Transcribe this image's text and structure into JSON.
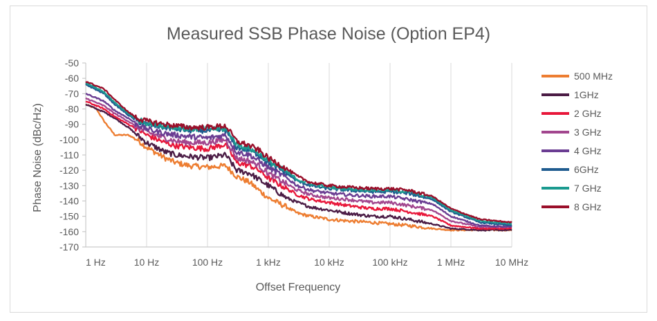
{
  "chart_data": {
    "type": "line",
    "title": "Measured SSB Phase Noise (Option EP4)",
    "xlabel": "Offset Frequency",
    "ylabel": "Phase Noise (dBc/Hz)",
    "x_scale": "log",
    "xlim": [
      1,
      10000000
    ],
    "ylim": [
      -170,
      -50
    ],
    "x_ticks": [
      1,
      10,
      100,
      1000,
      10000,
      100000,
      1000000,
      10000000
    ],
    "x_tick_labels": [
      "1 Hz",
      "10 Hz",
      "100 Hz",
      "1 kHz",
      "10 kHz",
      "100 kHz",
      "1 MHz",
      "10 MHz"
    ],
    "y_ticks": [
      -50,
      -60,
      -70,
      -80,
      -90,
      -100,
      -110,
      -120,
      -130,
      -140,
      -150,
      -160,
      -170
    ],
    "y_tick_labels": [
      "-50",
      "-60",
      "-70",
      "-80",
      "-90",
      "-100",
      "-110",
      "-120",
      "-130",
      "-140",
      "-150",
      "-160",
      "-170"
    ],
    "grid": "vertical",
    "legend_position": "right",
    "series": [
      {
        "name": "500 MHz",
        "color": "#ED7D31",
        "points": [
          [
            1,
            -77
          ],
          [
            1.5,
            -80
          ],
          [
            2,
            -88
          ],
          [
            3,
            -97
          ],
          [
            5,
            -97
          ],
          [
            7,
            -100
          ],
          [
            10,
            -105
          ],
          [
            20,
            -112
          ],
          [
            30,
            -115
          ],
          [
            50,
            -117
          ],
          [
            100,
            -118
          ],
          [
            200,
            -117
          ],
          [
            300,
            -124
          ],
          [
            500,
            -128
          ],
          [
            700,
            -133
          ],
          [
            1000,
            -138
          ],
          [
            2000,
            -144
          ],
          [
            3000,
            -148
          ],
          [
            5000,
            -150
          ],
          [
            10000,
            -152
          ],
          [
            20000,
            -153
          ],
          [
            50000,
            -154
          ],
          [
            100000,
            -155
          ],
          [
            200000,
            -156
          ],
          [
            500000,
            -158
          ],
          [
            1000000,
            -159
          ],
          [
            3000000,
            -159
          ],
          [
            10000000,
            -159
          ]
        ]
      },
      {
        "name": "1GHz",
        "color": "#4B1C45",
        "points": [
          [
            1,
            -77
          ],
          [
            2,
            -82
          ],
          [
            3,
            -86
          ],
          [
            5,
            -92
          ],
          [
            7,
            -97
          ],
          [
            10,
            -102
          ],
          [
            20,
            -108
          ],
          [
            30,
            -110
          ],
          [
            50,
            -111
          ],
          [
            100,
            -112
          ],
          [
            200,
            -110
          ],
          [
            300,
            -120
          ],
          [
            500,
            -122
          ],
          [
            700,
            -126
          ],
          [
            1000,
            -130
          ],
          [
            2000,
            -138
          ],
          [
            3000,
            -141
          ],
          [
            5000,
            -144
          ],
          [
            10000,
            -146
          ],
          [
            20000,
            -148
          ],
          [
            50000,
            -150
          ],
          [
            100000,
            -150
          ],
          [
            200000,
            -152
          ],
          [
            500000,
            -155
          ],
          [
            1000000,
            -158
          ],
          [
            3000000,
            -159
          ],
          [
            10000000,
            -159
          ]
        ]
      },
      {
        "name": "2 GHz",
        "color": "#E8173A",
        "points": [
          [
            1,
            -75
          ],
          [
            2,
            -80
          ],
          [
            3,
            -85
          ],
          [
            5,
            -90
          ],
          [
            7,
            -93
          ],
          [
            10,
            -97
          ],
          [
            20,
            -102
          ],
          [
            30,
            -104
          ],
          [
            50,
            -105
          ],
          [
            100,
            -106
          ],
          [
            200,
            -103
          ],
          [
            300,
            -115
          ],
          [
            500,
            -117
          ],
          [
            700,
            -120
          ],
          [
            1000,
            -125
          ],
          [
            2000,
            -132
          ],
          [
            3000,
            -136
          ],
          [
            5000,
            -139
          ],
          [
            10000,
            -141
          ],
          [
            20000,
            -143
          ],
          [
            50000,
            -145
          ],
          [
            100000,
            -145
          ],
          [
            200000,
            -147
          ],
          [
            500000,
            -150
          ],
          [
            1000000,
            -156
          ],
          [
            3000000,
            -158
          ],
          [
            10000000,
            -158
          ]
        ]
      },
      {
        "name": "3 GHz",
        "color": "#A2468E",
        "points": [
          [
            1,
            -73
          ],
          [
            2,
            -78
          ],
          [
            3,
            -83
          ],
          [
            5,
            -88
          ],
          [
            7,
            -92
          ],
          [
            10,
            -95
          ],
          [
            20,
            -99
          ],
          [
            30,
            -101
          ],
          [
            50,
            -102
          ],
          [
            100,
            -102
          ],
          [
            200,
            -100
          ],
          [
            300,
            -112
          ],
          [
            500,
            -114
          ],
          [
            700,
            -117
          ],
          [
            1000,
            -122
          ],
          [
            2000,
            -129
          ],
          [
            3000,
            -133
          ],
          [
            5000,
            -136
          ],
          [
            10000,
            -138
          ],
          [
            20000,
            -139
          ],
          [
            50000,
            -141
          ],
          [
            100000,
            -141
          ],
          [
            200000,
            -143
          ],
          [
            500000,
            -146
          ],
          [
            1000000,
            -153
          ],
          [
            3000000,
            -157
          ],
          [
            10000000,
            -157
          ]
        ]
      },
      {
        "name": "4 GHz",
        "color": "#6A3C92",
        "points": [
          [
            1,
            -70
          ],
          [
            2,
            -75
          ],
          [
            3,
            -81
          ],
          [
            5,
            -86
          ],
          [
            7,
            -90
          ],
          [
            10,
            -93
          ],
          [
            20,
            -96
          ],
          [
            30,
            -97
          ],
          [
            50,
            -98
          ],
          [
            100,
            -99
          ],
          [
            200,
            -97
          ],
          [
            300,
            -108
          ],
          [
            500,
            -110
          ],
          [
            700,
            -114
          ],
          [
            1000,
            -118
          ],
          [
            2000,
            -125
          ],
          [
            3000,
            -130
          ],
          [
            5000,
            -133
          ],
          [
            10000,
            -135
          ],
          [
            20000,
            -136
          ],
          [
            50000,
            -137
          ],
          [
            100000,
            -137
          ],
          [
            200000,
            -139
          ],
          [
            500000,
            -142
          ],
          [
            1000000,
            -150
          ],
          [
            3000000,
            -156
          ],
          [
            10000000,
            -157
          ]
        ]
      },
      {
        "name": "6GHz",
        "color": "#1F5B8F",
        "points": [
          [
            1,
            -64
          ],
          [
            2,
            -70
          ],
          [
            3,
            -77
          ],
          [
            5,
            -84
          ],
          [
            7,
            -88
          ],
          [
            10,
            -90
          ],
          [
            20,
            -92
          ],
          [
            30,
            -93
          ],
          [
            50,
            -94
          ],
          [
            100,
            -94
          ],
          [
            200,
            -94
          ],
          [
            300,
            -105
          ],
          [
            500,
            -107
          ],
          [
            700,
            -110
          ],
          [
            1000,
            -115
          ],
          [
            2000,
            -122
          ],
          [
            3000,
            -127
          ],
          [
            5000,
            -130
          ],
          [
            10000,
            -132
          ],
          [
            20000,
            -133
          ],
          [
            50000,
            -134
          ],
          [
            100000,
            -134
          ],
          [
            200000,
            -135
          ],
          [
            500000,
            -139
          ],
          [
            1000000,
            -147
          ],
          [
            3000000,
            -154
          ],
          [
            10000000,
            -156
          ]
        ]
      },
      {
        "name": "7 GHz",
        "color": "#1A9A8F",
        "points": [
          [
            1,
            -63
          ],
          [
            2,
            -69
          ],
          [
            3,
            -76
          ],
          [
            5,
            -83
          ],
          [
            7,
            -87
          ],
          [
            10,
            -89
          ],
          [
            20,
            -91
          ],
          [
            30,
            -92
          ],
          [
            50,
            -93
          ],
          [
            100,
            -93
          ],
          [
            200,
            -93
          ],
          [
            300,
            -103
          ],
          [
            500,
            -106
          ],
          [
            700,
            -109
          ],
          [
            1000,
            -114
          ],
          [
            2000,
            -121
          ],
          [
            3000,
            -126
          ],
          [
            5000,
            -129
          ],
          [
            10000,
            -131
          ],
          [
            20000,
            -132
          ],
          [
            50000,
            -133
          ],
          [
            100000,
            -133
          ],
          [
            200000,
            -134
          ],
          [
            500000,
            -138
          ],
          [
            1000000,
            -146
          ],
          [
            3000000,
            -153
          ],
          [
            10000000,
            -155
          ]
        ]
      },
      {
        "name": "8 GHz",
        "color": "#9A0F2A",
        "points": [
          [
            1,
            -62
          ],
          [
            2,
            -67
          ],
          [
            3,
            -74
          ],
          [
            5,
            -82
          ],
          [
            7,
            -86
          ],
          [
            10,
            -88
          ],
          [
            20,
            -90
          ],
          [
            30,
            -91
          ],
          [
            50,
            -92
          ],
          [
            100,
            -92
          ],
          [
            200,
            -91
          ],
          [
            300,
            -101
          ],
          [
            500,
            -104
          ],
          [
            700,
            -107
          ],
          [
            1000,
            -112
          ],
          [
            2000,
            -119
          ],
          [
            3000,
            -124
          ],
          [
            5000,
            -128
          ],
          [
            10000,
            -130
          ],
          [
            20000,
            -131
          ],
          [
            50000,
            -132
          ],
          [
            100000,
            -132
          ],
          [
            200000,
            -133
          ],
          [
            500000,
            -137
          ],
          [
            1000000,
            -145
          ],
          [
            3000000,
            -152
          ],
          [
            10000000,
            -154
          ]
        ]
      }
    ]
  }
}
